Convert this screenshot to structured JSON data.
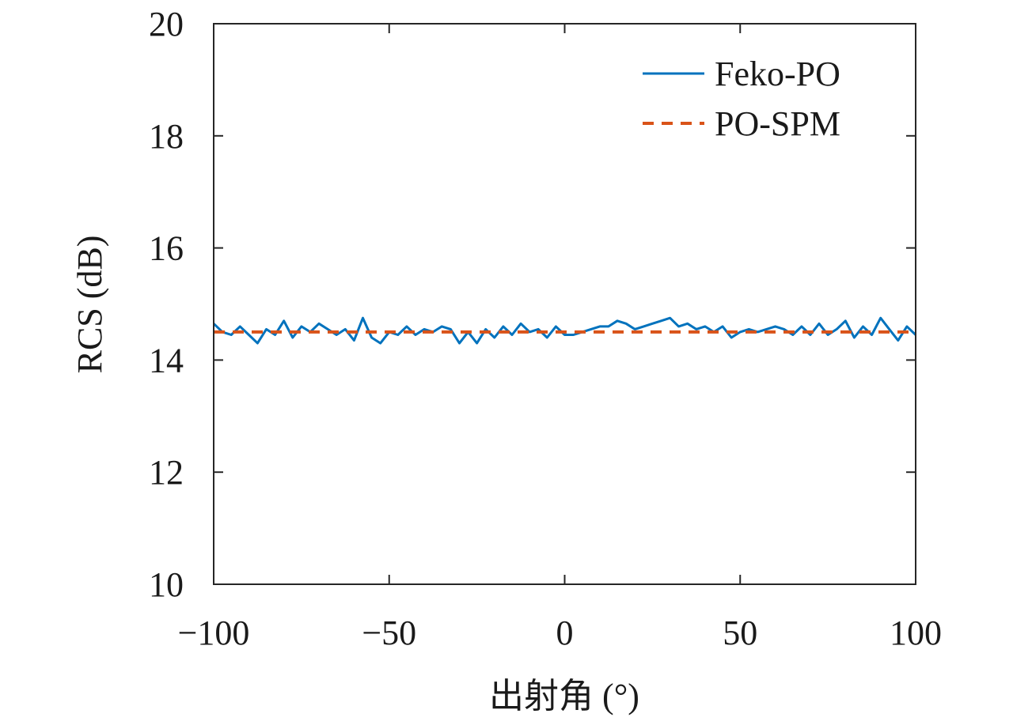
{
  "chart_data": {
    "type": "line",
    "xlabel": "出射角 (°)",
    "ylabel": "RCS (dB)",
    "xlim": [
      -100,
      100
    ],
    "ylim": [
      10,
      20
    ],
    "x_ticks": [
      -100,
      -50,
      0,
      50,
      100
    ],
    "x_tick_labels": [
      "−100",
      "−50",
      "0",
      "50",
      "100"
    ],
    "y_ticks": [
      10,
      12,
      14,
      16,
      18,
      20
    ],
    "y_tick_labels": [
      "10",
      "12",
      "14",
      "16",
      "18",
      "20"
    ],
    "grid": false,
    "legend_position": "top-right",
    "series": [
      {
        "name": "Feko-PO",
        "color": "#0072BD",
        "style": "solid",
        "x": [
          -100,
          -97.5,
          -95,
          -92.5,
          -90,
          -87.5,
          -85,
          -82.5,
          -80,
          -77.5,
          -75,
          -72.5,
          -70,
          -67.5,
          -65,
          -62.5,
          -60,
          -57.5,
          -55,
          -52.5,
          -50,
          -47.5,
          -45,
          -42.5,
          -40,
          -37.5,
          -35,
          -32.5,
          -30,
          -27.5,
          -25,
          -22.5,
          -20,
          -17.5,
          -15,
          -12.5,
          -10,
          -7.5,
          -5,
          -2.5,
          0,
          2.5,
          5,
          7.5,
          10,
          12.5,
          15,
          17.5,
          20,
          22.5,
          25,
          27.5,
          30,
          32.5,
          35,
          37.5,
          40,
          42.5,
          45,
          47.5,
          50,
          52.5,
          55,
          57.5,
          60,
          62.5,
          65,
          67.5,
          70,
          72.5,
          75,
          77.5,
          80,
          82.5,
          85,
          87.5,
          90,
          92.5,
          95,
          97.5,
          100
        ],
        "values": [
          14.65,
          14.5,
          14.45,
          14.6,
          14.45,
          14.3,
          14.55,
          14.45,
          14.7,
          14.4,
          14.6,
          14.5,
          14.65,
          14.55,
          14.45,
          14.55,
          14.35,
          14.75,
          14.4,
          14.3,
          14.5,
          14.45,
          14.6,
          14.45,
          14.55,
          14.5,
          14.6,
          14.55,
          14.3,
          14.5,
          14.3,
          14.55,
          14.4,
          14.6,
          14.45,
          14.65,
          14.5,
          14.55,
          14.4,
          14.6,
          14.45,
          14.45,
          14.5,
          14.55,
          14.6,
          14.6,
          14.7,
          14.65,
          14.55,
          14.6,
          14.65,
          14.7,
          14.75,
          14.6,
          14.65,
          14.55,
          14.6,
          14.5,
          14.6,
          14.4,
          14.5,
          14.55,
          14.5,
          14.55,
          14.6,
          14.55,
          14.45,
          14.6,
          14.45,
          14.65,
          14.45,
          14.55,
          14.7,
          14.4,
          14.6,
          14.45,
          14.75,
          14.55,
          14.35,
          14.6,
          14.45
        ]
      },
      {
        "name": "PO-SPM",
        "color": "#D95319",
        "style": "dashed",
        "x": [
          -100,
          -97.5,
          -95,
          -92.5,
          -90,
          -87.5,
          -85,
          -82.5,
          -80,
          -77.5,
          -75,
          -72.5,
          -70,
          -67.5,
          -65,
          -62.5,
          -60,
          -57.5,
          -55,
          -52.5,
          -50,
          -47.5,
          -45,
          -42.5,
          -40,
          -37.5,
          -35,
          -32.5,
          -30,
          -27.5,
          -25,
          -22.5,
          -20,
          -17.5,
          -15,
          -12.5,
          -10,
          -7.5,
          -5,
          -2.5,
          0,
          2.5,
          5,
          7.5,
          10,
          12.5,
          15,
          17.5,
          20,
          22.5,
          25,
          27.5,
          30,
          32.5,
          35,
          37.5,
          40,
          42.5,
          45,
          47.5,
          50,
          52.5,
          55,
          57.5,
          60,
          62.5,
          65,
          67.5,
          70,
          72.5,
          75,
          77.5,
          80,
          82.5,
          85,
          87.5,
          90,
          92.5,
          95,
          97.5,
          100
        ],
        "values": [
          14.5,
          14.5,
          14.5,
          14.5,
          14.5,
          14.5,
          14.5,
          14.5,
          14.5,
          14.5,
          14.5,
          14.5,
          14.5,
          14.5,
          14.5,
          14.5,
          14.5,
          14.5,
          14.5,
          14.5,
          14.5,
          14.5,
          14.5,
          14.5,
          14.5,
          14.5,
          14.5,
          14.5,
          14.5,
          14.5,
          14.5,
          14.5,
          14.5,
          14.5,
          14.5,
          14.5,
          14.5,
          14.5,
          14.5,
          14.5,
          14.5,
          14.5,
          14.5,
          14.5,
          14.5,
          14.5,
          14.5,
          14.5,
          14.5,
          14.5,
          14.5,
          14.5,
          14.5,
          14.5,
          14.5,
          14.5,
          14.5,
          14.5,
          14.5,
          14.5,
          14.5,
          14.5,
          14.5,
          14.5,
          14.5,
          14.5,
          14.5,
          14.5,
          14.5,
          14.5,
          14.5,
          14.5,
          14.5,
          14.5,
          14.5,
          14.5,
          14.5,
          14.5,
          14.5,
          14.5,
          14.5
        ]
      }
    ]
  }
}
